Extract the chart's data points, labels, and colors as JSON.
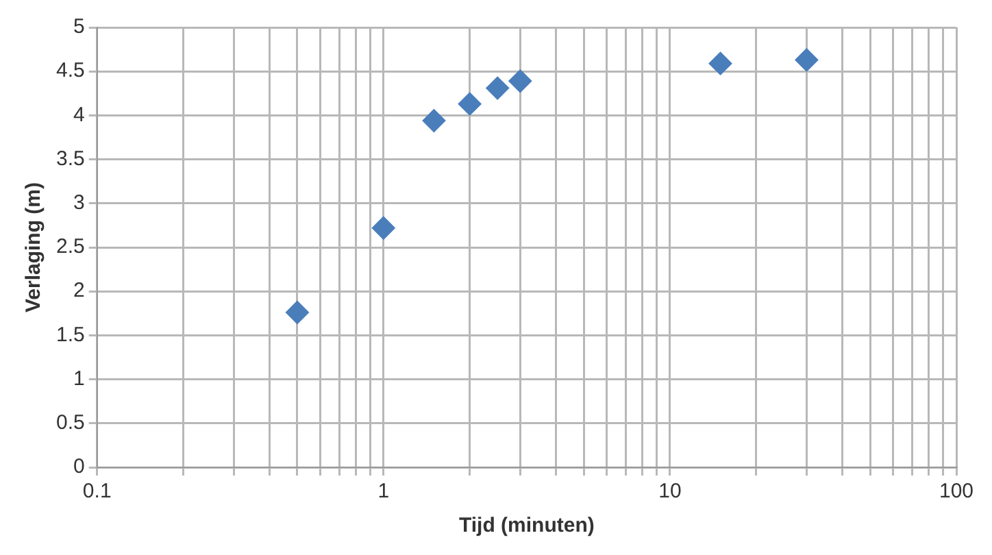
{
  "chart_data": {
    "type": "scatter",
    "xlabel": "Tijd (minuten)",
    "ylabel": "Verlaging (m)",
    "x": [
      0.5,
      1,
      1.5,
      2,
      2.5,
      3,
      15,
      30
    ],
    "values": [
      1.76,
      2.72,
      3.94,
      4.13,
      4.31,
      4.39,
      4.59,
      4.63
    ],
    "color": "#4a7ebb",
    "marker": "diamond",
    "log": "x",
    "grid": true,
    "xlim": [
      0.1,
      100
    ],
    "xticks": [
      0.1,
      {
        "value": 0.2,
        "label": null
      },
      {
        "value": 0.3,
        "label": null
      },
      {
        "value": 0.4,
        "label": null
      },
      {
        "value": 0.5,
        "label": null
      },
      {
        "value": 0.6,
        "label": null
      },
      {
        "value": 0.7,
        "label": null
      },
      {
        "value": 0.8,
        "label": null
      },
      {
        "value": 0.9,
        "label": null
      },
      1,
      {
        "value": 2,
        "label": null
      },
      {
        "value": 3,
        "label": null
      },
      {
        "value": 4,
        "label": null
      },
      {
        "value": 5,
        "label": null
      },
      {
        "value": 6,
        "label": null
      },
      {
        "value": 7,
        "label": null
      },
      {
        "value": 8,
        "label": null
      },
      {
        "value": 9,
        "label": null
      },
      10,
      {
        "value": 20,
        "label": null
      },
      {
        "value": 30,
        "label": null
      },
      {
        "value": 40,
        "label": null
      },
      {
        "value": 50,
        "label": null
      },
      {
        "value": 60,
        "label": null
      },
      {
        "value": 70,
        "label": null
      },
      {
        "value": 80,
        "label": null
      },
      {
        "value": 90,
        "label": null
      },
      100
    ],
    "ylim": [
      0,
      5
    ],
    "yticks": [
      0,
      0.5,
      1,
      1.5,
      2,
      2.5,
      3,
      3.5,
      4,
      4.5,
      5
    ]
  }
}
